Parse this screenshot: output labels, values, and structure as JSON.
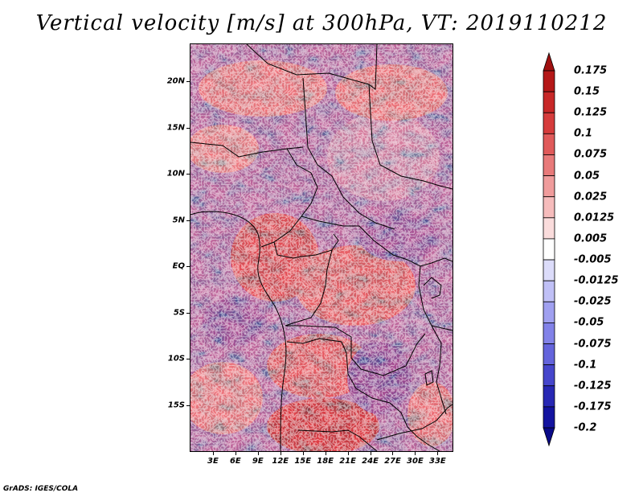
{
  "title": "Vertical velocity [m/s] at 300hPa, VT: 2019110212",
  "credit": "GrADS: IGES/COLA",
  "map": {
    "lon_min": 0,
    "lon_max": 35,
    "lat_min": -20,
    "lat_max": 24,
    "lat_labels": [
      "20N",
      "15N",
      "10N",
      "5N",
      "EQ",
      "5S",
      "10S",
      "15S"
    ],
    "lat_values": [
      20,
      15,
      10,
      5,
      0,
      -5,
      -10,
      -15
    ],
    "lon_labels": [
      "3E",
      "6E",
      "9E",
      "12E",
      "15E",
      "18E",
      "21E",
      "24E",
      "27E",
      "30E",
      "33E"
    ],
    "lon_values": [
      3,
      6,
      9,
      12,
      15,
      18,
      21,
      24,
      27,
      30,
      33
    ]
  },
  "colorbar": {
    "labels": [
      "0.175",
      "0.15",
      "0.125",
      "0.1",
      "0.075",
      "0.05",
      "0.025",
      "0.0125",
      "0.005",
      "-0.005",
      "-0.0125",
      "-0.025",
      "-0.05",
      "-0.075",
      "-0.1",
      "-0.125",
      "-0.175",
      "-0.2"
    ],
    "colors": [
      "#a01010",
      "#b51818",
      "#c82828",
      "#d63c3c",
      "#e05a5a",
      "#e87a7a",
      "#f09c9c",
      "#f6bcbc",
      "#fadcdc",
      "#ffffff",
      "#dcdcfa",
      "#c0c0f6",
      "#a0a0f0",
      "#8282e8",
      "#6464dc",
      "#4646cc",
      "#2828b4",
      "#1414a0",
      "#0a0a88"
    ]
  }
}
